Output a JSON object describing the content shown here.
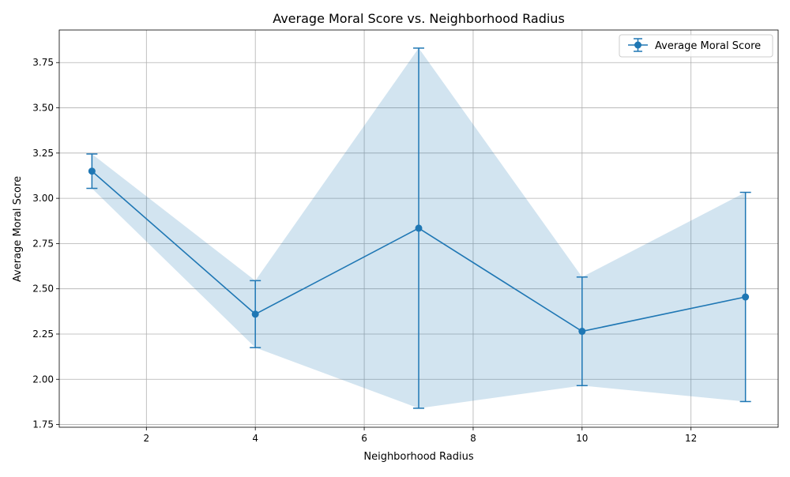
{
  "chart_data": {
    "type": "line",
    "title": "Average Moral Score vs. Neighborhood Radius",
    "xlabel": "Neighborhood Radius",
    "ylabel": "Average Moral Score",
    "xlim": [
      0.4,
      13.6
    ],
    "ylim": [
      1.735,
      3.93
    ],
    "x_ticks": [
      2,
      4,
      6,
      8,
      10,
      12
    ],
    "y_ticks": [
      1.75,
      2.0,
      2.25,
      2.5,
      2.75,
      3.0,
      3.25,
      3.5,
      3.75
    ],
    "x_tick_labels": [
      "2",
      "4",
      "6",
      "8",
      "10",
      "12"
    ],
    "y_tick_labels": [
      "1.75",
      "2.00",
      "2.25",
      "2.50",
      "2.75",
      "3.00",
      "3.25",
      "3.50",
      "3.75"
    ],
    "grid": true,
    "legend_position": "top-right",
    "series": [
      {
        "name": "Average Moral Score",
        "color": "#1f77b4",
        "band_color": "#1f77b4",
        "marker": "circle",
        "x": [
          1,
          4,
          7,
          10,
          13
        ],
        "y": [
          3.15,
          2.36,
          2.835,
          2.265,
          2.455
        ],
        "error": [
          0.095,
          0.185,
          0.995,
          0.3,
          0.578
        ]
      }
    ]
  }
}
